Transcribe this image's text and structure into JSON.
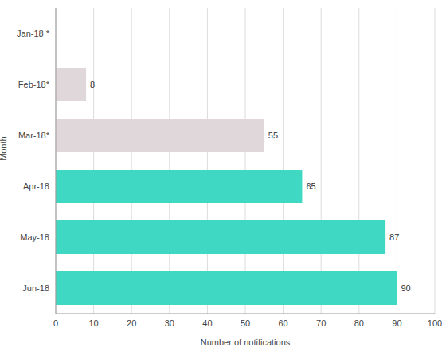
{
  "chart_data": {
    "type": "bar",
    "orientation": "horizontal",
    "x_label": "Number of notifications",
    "y_label": "Month",
    "categories": [
      "Jan-18 *",
      "Feb-18*",
      "Mar-18*",
      "Apr-18",
      "May-18",
      "Jun-18"
    ],
    "values": [
      null,
      8,
      55,
      65,
      87,
      90
    ],
    "colors": [
      "#e0d7da",
      "#e0d7da",
      "#e0d7da",
      "#3ed8c3",
      "#3ed8c3",
      "#3ed8c3"
    ],
    "xlim": [
      0,
      100
    ],
    "xticks": [
      0,
      10,
      20,
      30,
      40,
      50,
      60,
      70,
      80,
      90,
      100
    ],
    "grid": true,
    "data_labels": true
  }
}
